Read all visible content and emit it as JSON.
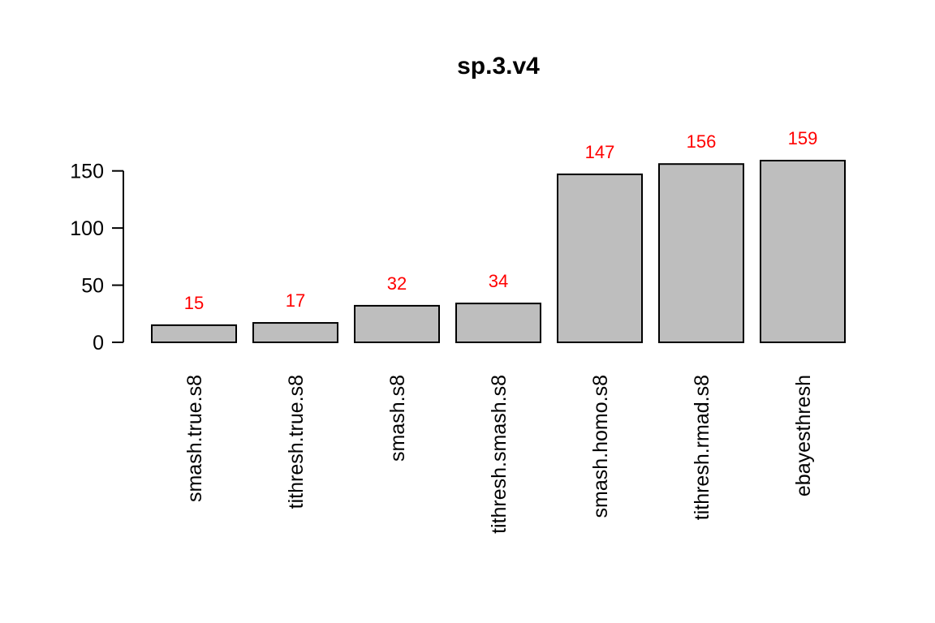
{
  "chart_data": {
    "type": "bar",
    "title": "sp.3.v4",
    "xlabel": "",
    "ylabel": "",
    "categories": [
      "smash.true.s8",
      "tithresh.true.s8",
      "smash.s8",
      "tithresh.smash.s8",
      "smash.homo.s8",
      "tithresh.rmad.s8",
      "ebayesthresh"
    ],
    "values": [
      15,
      17,
      32,
      34,
      147,
      156,
      159
    ],
    "data_labels": [
      "15",
      "17",
      "32",
      "34",
      "147",
      "156",
      "159"
    ],
    "yticks": [
      0,
      50,
      100,
      150
    ],
    "ylim": [
      0,
      159
    ],
    "grid": false,
    "legend": "none",
    "bar_color": "#bebebe",
    "label_color": "#ff0000"
  }
}
